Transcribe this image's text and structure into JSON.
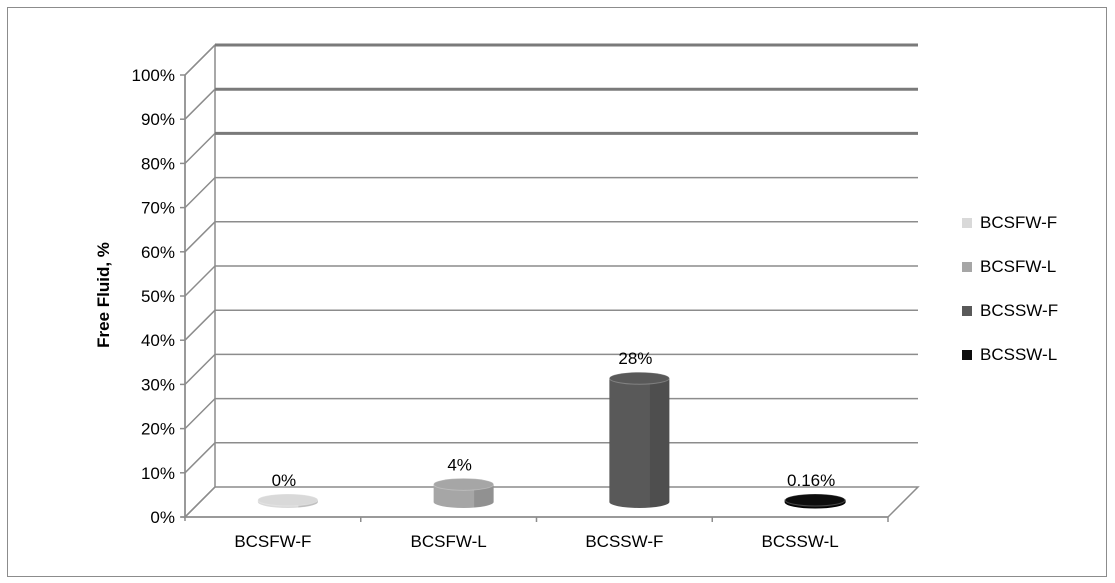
{
  "chart_data": {
    "type": "bar",
    "categories": [
      "BCSFW-F",
      "BCSFW-L",
      "BCSSW-F",
      "BCSSW-L"
    ],
    "values": [
      0,
      4,
      28,
      0.16
    ],
    "data_labels": [
      "0%",
      "4%",
      "28%",
      "0.16%"
    ],
    "ylabel": "Free Fluid, %",
    "xlabel": "",
    "ylim": [
      0,
      100
    ],
    "yticks": [
      "0%",
      "10%",
      "20%",
      "30%",
      "40%",
      "50%",
      "60%",
      "70%",
      "80%",
      "90%",
      "100%"
    ],
    "legend": {
      "position": "right",
      "entries": [
        "BCSFW-F",
        "BCSFW-L",
        "BCSSW-F",
        "BCSSW-L"
      ]
    },
    "colors": [
      "#d9d9d9",
      "#a6a6a6",
      "#595959",
      "#0d0d0d"
    ],
    "grid": true,
    "style": "3d-cylinder"
  }
}
